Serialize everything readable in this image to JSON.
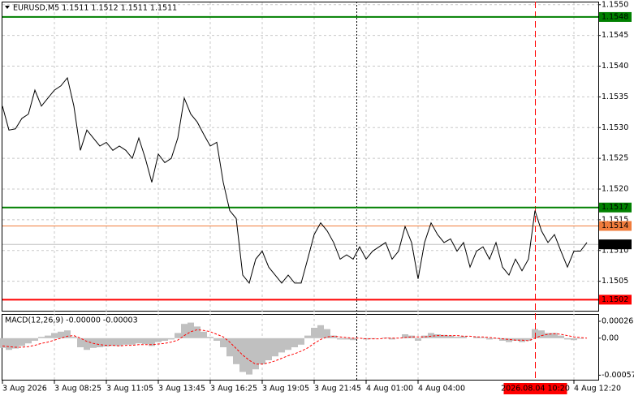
{
  "chart_data": [
    {
      "type": "line",
      "title": "EURUSD,M5  1.1511 1.1512 1.1511 1.1511",
      "color": "#000000",
      "grid": true,
      "categories": [
        "3 Aug 2026",
        null,
        null,
        null,
        null,
        null,
        null,
        null,
        "3 Aug 08:25",
        null,
        null,
        null,
        null,
        null,
        null,
        null,
        "3 Aug 11:05",
        null,
        null,
        null,
        null,
        null,
        null,
        null,
        "3 Aug 13:45",
        null,
        null,
        null,
        null,
        null,
        null,
        null,
        "3 Aug 16:25",
        null,
        null,
        null,
        null,
        null,
        null,
        null,
        "3 Aug 19:05",
        null,
        null,
        null,
        null,
        null,
        null,
        null,
        "3 Aug 21:45",
        null,
        null,
        null,
        null,
        null,
        null,
        null,
        "4 Aug 01:00",
        null,
        null,
        null,
        null,
        null,
        null,
        null,
        "4 Aug 04:00",
        null,
        null,
        null,
        null,
        null,
        null,
        null,
        null,
        null,
        null,
        null,
        null,
        null,
        null,
        null,
        null,
        null,
        null,
        null,
        null,
        null,
        null,
        null,
        "4 Aug 12:20",
        null,
        null
      ],
      "values": [
        1.15335,
        1.15296,
        1.15298,
        1.15315,
        1.15322,
        1.15361,
        1.15335,
        1.15348,
        1.15361,
        1.15368,
        1.15381,
        1.15335,
        1.15263,
        1.15296,
        1.15283,
        1.1527,
        1.15276,
        1.15263,
        1.1527,
        1.15263,
        1.1525,
        1.15283,
        1.1525,
        1.15211,
        1.15257,
        1.15243,
        1.1525,
        1.15283,
        1.15348,
        1.15322,
        1.15309,
        1.15289,
        1.1527,
        1.15276,
        1.15211,
        1.15165,
        1.15152,
        1.1506,
        1.15047,
        1.15086,
        1.15099,
        1.15073,
        1.1506,
        1.15047,
        1.1506,
        1.15047,
        1.15047,
        1.15086,
        1.15126,
        1.15145,
        1.15132,
        1.15113,
        1.15086,
        1.15093,
        1.15086,
        1.15106,
        1.15086,
        1.15099,
        1.15106,
        1.15113,
        1.15086,
        1.15099,
        1.15139,
        1.15113,
        1.15054,
        1.15113,
        1.15145,
        1.15126,
        1.15113,
        1.15119,
        1.15099,
        1.15113,
        1.15073,
        1.15099,
        1.15106,
        1.15086,
        1.15113,
        1.15073,
        1.1506,
        1.15086,
        1.15067,
        1.15086,
        1.15165,
        1.15132,
        1.15113,
        1.15126,
        1.15099,
        1.15073,
        1.15099,
        1.15099,
        1.15113
      ],
      "ylim": [
        1.15002,
        1.15505
      ],
      "yticks": [
        {
          "value": 1.155,
          "label": "1.1550"
        },
        {
          "value": 1.1545,
          "label": "1.1545"
        },
        {
          "value": 1.154,
          "label": "1.1540"
        },
        {
          "value": 1.1535,
          "label": "1.1535"
        },
        {
          "value": 1.153,
          "label": "1.1530"
        },
        {
          "value": 1.1525,
          "label": "1.1525"
        },
        {
          "value": 1.152,
          "label": "1.1520"
        },
        {
          "value": 1.1515,
          "label": "1.1515"
        },
        {
          "value": 1.151,
          "label": "1.1510"
        },
        {
          "value": 1.1505,
          "label": "1.1505"
        }
      ],
      "levels": [
        {
          "value": 1.1548,
          "color": "#008000"
        },
        {
          "value": 1.1517,
          "color": "#008000"
        },
        {
          "value": 1.1514,
          "color": "#f07c3c"
        },
        {
          "value": 1.1511,
          "color": "#000000"
        },
        {
          "value": 1.1502,
          "color": "#ff0000"
        }
      ],
      "crosshair": {
        "label": "2026.08.04 10:20",
        "color": "#ff0000"
      }
    },
    {
      "type": "macd",
      "title": "MACD(12,26,9) -0.00000 -0.00003",
      "ylim": [
        -0.00064,
        0.00036
      ],
      "yticks": [
        0.00026,
        {
          "value": 0,
          "label": "0.00"
        },
        -0.00057
      ],
      "series": [
        {
          "style": "histogram",
          "color": "#c0c0c0",
          "values": [
            -0.00015,
            -0.00018,
            -0.00016,
            -0.00012,
            -8e-05,
            -4e-05,
            2e-05,
            4e-05,
            8e-05,
            0.0001,
            0.00012,
            2e-05,
            -0.00014,
            -0.00018,
            -0.00015,
            -0.00014,
            -0.00013,
            -0.00012,
            -0.00012,
            -0.0001,
            -0.0001,
            -8e-05,
            -9e-05,
            -0.00012,
            -6e-05,
            -4e-05,
            -2e-05,
            8e-05,
            0.00022,
            0.00024,
            0.00018,
            0.0001,
            2e-05,
            -4e-05,
            -0.00014,
            -0.00028,
            -0.0004,
            -0.00052,
            -0.00056,
            -0.00048,
            -0.0004,
            -0.00034,
            -0.00028,
            -0.00022,
            -0.00018,
            -0.00014,
            -0.0001,
            4e-05,
            0.00016,
            0.0002,
            0.00014,
            4e-05,
            -2e-05,
            -2e-05,
            -3e-05,
            0,
            -2e-05,
            -1e-05,
            0,
            1e-05,
            -2e-05,
            0,
            6e-05,
            4e-05,
            -4e-05,
            4e-05,
            8e-05,
            6e-05,
            5e-05,
            4e-05,
            2e-05,
            3e-05,
            0,
            2e-05,
            1e-05,
            -2e-05,
            -1e-05,
            -4e-05,
            -6e-05,
            -4e-05,
            -6e-05,
            -4e-05,
            0.00014,
            0.00012,
            8e-05,
            8e-05,
            4e-05,
            -2e-05,
            -3e-05,
            -1e-05,
            0
          ]
        },
        {
          "style": "dashed",
          "color": "#ff0000",
          "values": [
            -0.00012,
            -0.00013,
            -0.00014,
            -0.00014,
            -0.00013,
            -0.00011,
            -8e-05,
            -6e-05,
            -3e-05,
            0,
            3e-05,
            4e-05,
            0,
            -5e-05,
            -8e-05,
            -0.0001,
            -0.00011,
            -0.00011,
            -0.00012,
            -0.00011,
            -0.00011,
            -0.0001,
            -0.0001,
            -0.0001,
            -9e-05,
            -8e-05,
            -6e-05,
            -3e-05,
            4e-05,
            0.0001,
            0.00013,
            0.00012,
            0.0001,
            6e-05,
            2e-05,
            -6e-05,
            -0.00016,
            -0.00026,
            -0.00034,
            -0.0004,
            -0.0004,
            -0.00038,
            -0.00035,
            -0.00031,
            -0.00027,
            -0.00024,
            -0.0002,
            -0.00015,
            -8e-05,
            -2e-05,
            2e-05,
            3e-05,
            2e-05,
            1e-05,
            0,
            0,
            -1e-05,
            -1e-05,
            -1e-05,
            0,
            0,
            0,
            1e-05,
            2e-05,
            2e-05,
            2e-05,
            3e-05,
            4e-05,
            4e-05,
            4e-05,
            4e-05,
            3e-05,
            3e-05,
            2e-05,
            2e-05,
            1e-05,
            0,
            -1e-05,
            -2e-05,
            -3e-05,
            -3e-05,
            -4e-05,
            0,
            4e-05,
            6e-05,
            7e-05,
            6e-05,
            4e-05,
            2e-05,
            1e-05,
            0
          ]
        }
      ]
    }
  ]
}
